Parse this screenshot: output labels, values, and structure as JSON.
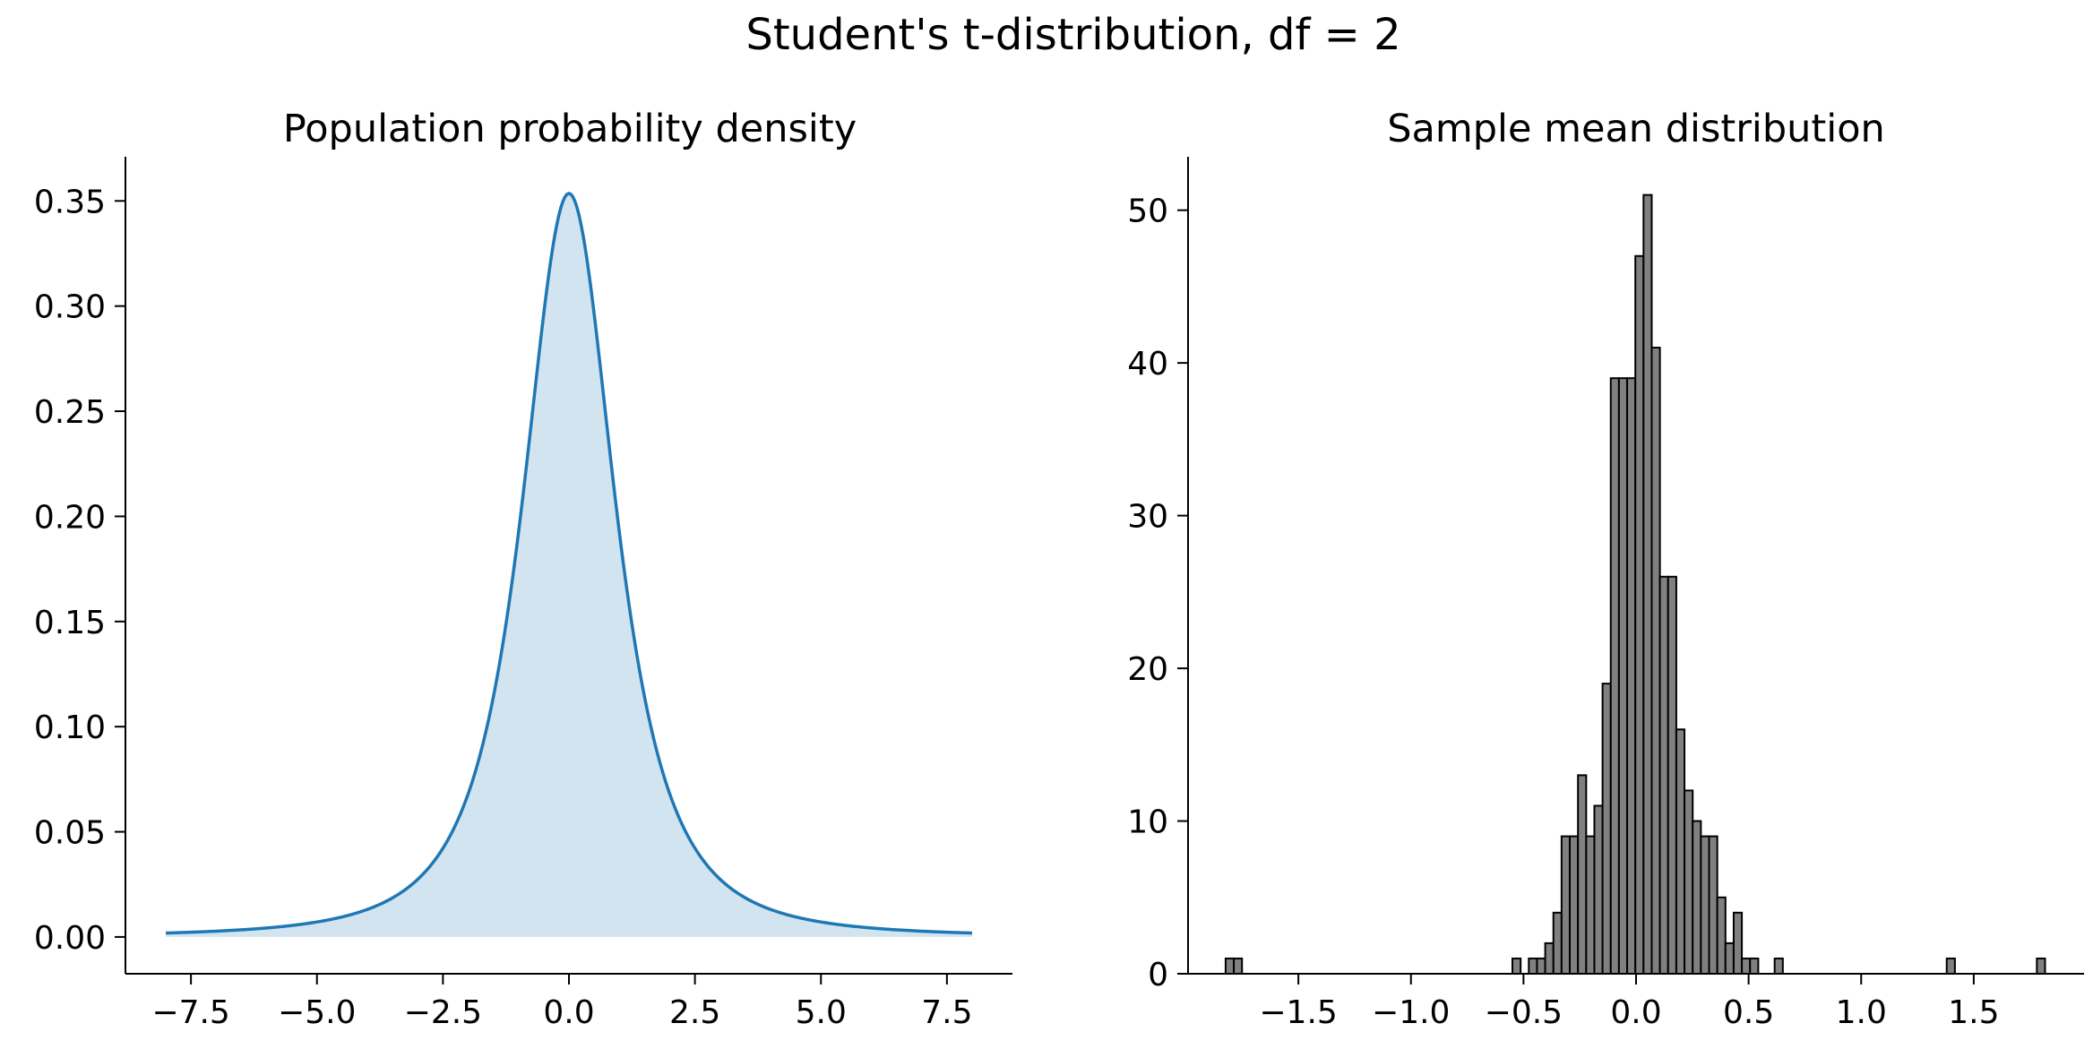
{
  "figure": {
    "suptitle": "Student's t-distribution, df = 2"
  },
  "chart_data": [
    {
      "type": "area",
      "title": "Population probability density",
      "xlabel": "",
      "ylabel": "",
      "xlim": [
        -8.8,
        8.8
      ],
      "ylim": [
        -0.0175,
        0.371
      ],
      "grid": false,
      "x_ticks": [
        -7.5,
        -5.0,
        -2.5,
        0.0,
        2.5,
        5.0,
        7.5
      ],
      "x_tick_labels": [
        "−7.5",
        "−5.0",
        "−2.5",
        "0.0",
        "2.5",
        "5.0",
        "7.5"
      ],
      "y_ticks": [
        0.0,
        0.05,
        0.1,
        0.15,
        0.2,
        0.25,
        0.3,
        0.35
      ],
      "y_tick_labels": [
        "0.00",
        "0.05",
        "0.10",
        "0.15",
        "0.20",
        "0.25",
        "0.30",
        "0.35"
      ],
      "function": "student_t_pdf",
      "df": 2,
      "x_range": [
        -8,
        8
      ],
      "line_color": "#1f77b4",
      "fill_color": "#1f77b4",
      "fill_opacity": 0.2
    },
    {
      "type": "bar",
      "title": "Sample mean distribution",
      "xlabel": "",
      "ylabel": "",
      "xlim": [
        -1.99,
        1.99
      ],
      "ylim": [
        0,
        53.5
      ],
      "grid": false,
      "x_ticks": [
        -1.5,
        -1.0,
        -0.5,
        0.0,
        0.5,
        1.0,
        1.5
      ],
      "x_tick_labels": [
        "−1.5",
        "−1.0",
        "−0.5",
        "0.0",
        "0.5",
        "1.0",
        "1.5"
      ],
      "y_ticks": [
        0,
        10,
        20,
        30,
        40,
        50
      ],
      "y_tick_labels": [
        "0",
        "10",
        "20",
        "30",
        "40",
        "50"
      ],
      "bin_start": -1.8232,
      "bin_width": 0.0364,
      "counts": [
        1,
        1,
        0,
        0,
        0,
        0,
        0,
        0,
        0,
        0,
        0,
        0,
        0,
        0,
        0,
        0,
        0,
        0,
        0,
        0,
        0,
        0,
        0,
        0,
        0,
        0,
        0,
        0,
        0,
        0,
        0,
        0,
        0,
        0,
        0,
        1,
        0,
        1,
        1,
        2,
        4,
        9,
        9,
        13,
        9,
        11,
        19,
        39,
        39,
        39,
        47,
        51,
        41,
        26,
        26,
        16,
        12,
        10,
        9,
        9,
        5,
        2,
        4,
        1,
        1,
        0,
        0,
        1,
        0,
        0,
        0,
        0,
        0,
        0,
        0,
        0,
        0,
        0,
        0,
        0,
        0,
        0,
        0,
        0,
        0,
        0,
        0,
        0,
        1,
        0,
        0,
        0,
        0,
        0,
        0,
        0,
        0,
        0,
        0,
        1
      ],
      "bar_color": "#808080",
      "edge_color": "#000000"
    }
  ]
}
